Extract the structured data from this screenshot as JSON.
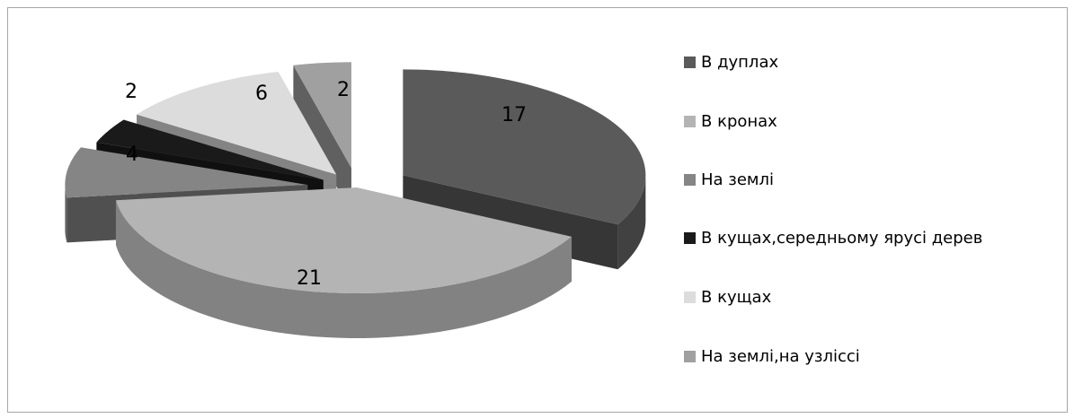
{
  "chart_data": {
    "type": "pie",
    "categories": [
      "В дуплах",
      "В кронах",
      "На землі",
      "В кущах,середньому ярусі дерев",
      "В кущах",
      "На землі,на узліссі"
    ],
    "values": [
      17,
      21,
      4,
      2,
      6,
      2
    ],
    "labels": [
      "17",
      "21",
      "4",
      "2",
      "6",
      "2"
    ],
    "colors": [
      "#5a5a5a",
      "#b4b4b4",
      "#858585",
      "#1a1a1a",
      "#dcdcdc",
      "#a0a0a0"
    ],
    "legend_position": "right",
    "exploded": true,
    "three_d": true
  },
  "legend": {
    "items": [
      {
        "label": "В дуплах",
        "color": "#5a5a5a"
      },
      {
        "label": "В кронах",
        "color": "#b4b4b4"
      },
      {
        "label": "На землі",
        "color": "#858585"
      },
      {
        "label": "В кущах,середньому ярусі дерев",
        "color": "#1a1a1a"
      },
      {
        "label": "В кущах",
        "color": "#dcdcdc"
      },
      {
        "label": "На землі,на узліссі",
        "color": "#a0a0a0"
      }
    ]
  }
}
